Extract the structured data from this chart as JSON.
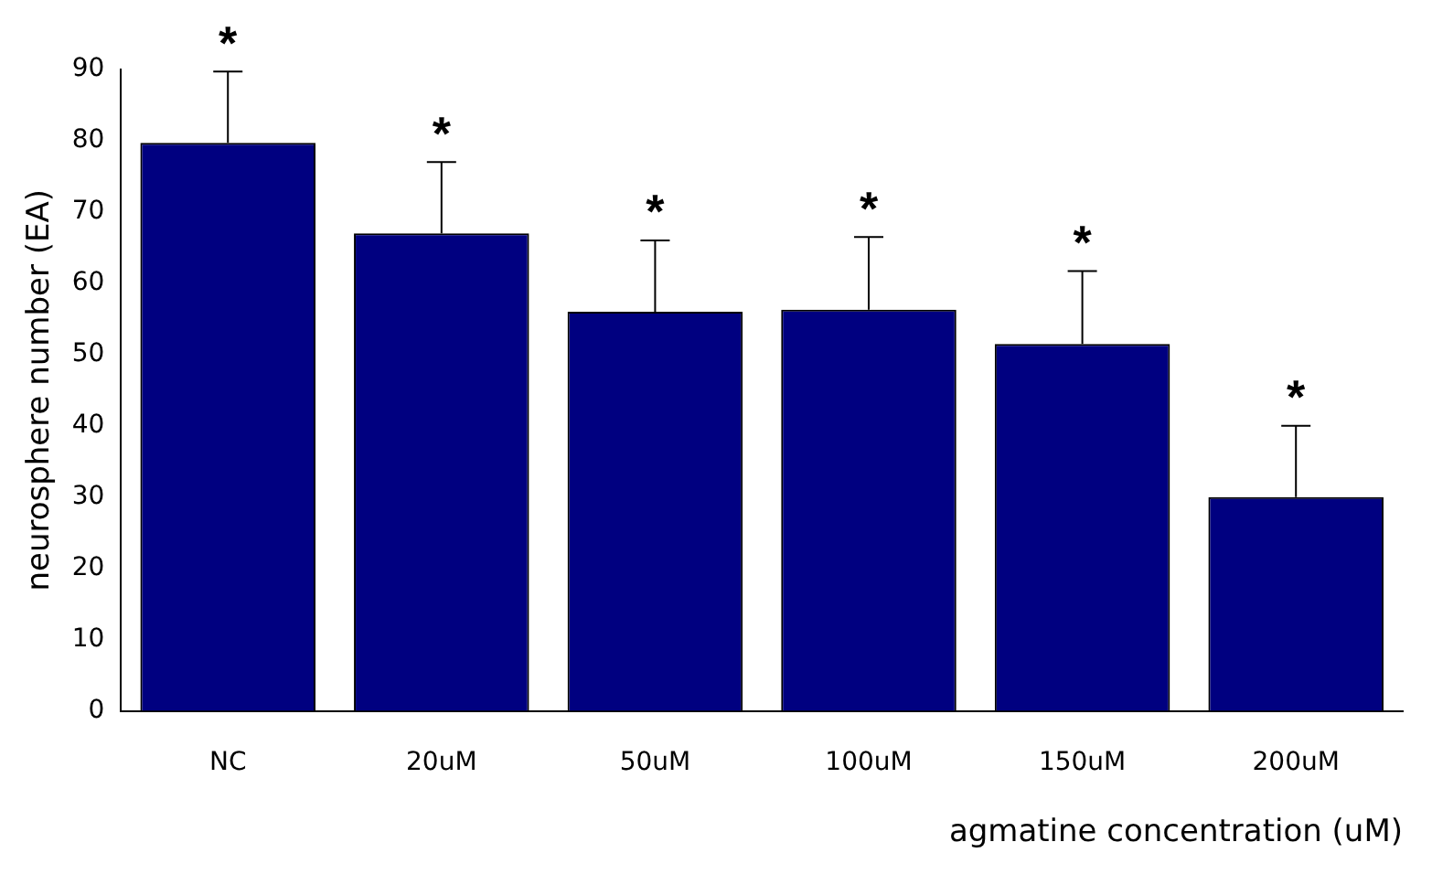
{
  "chart_data": {
    "type": "bar",
    "xlabel": "agmatine concentration (uM)",
    "ylabel": "neurosphere number (EA)",
    "categories": [
      "NC",
      "20uM",
      "50uM",
      "100uM",
      "150uM",
      "200uM"
    ],
    "values": [
      79.7,
      67,
      56,
      56.3,
      51.5,
      30
    ],
    "errors": [
      [
        79.7,
        89.7
      ],
      [
        67,
        77
      ],
      [
        56,
        66
      ],
      [
        56.3,
        66.5
      ],
      [
        51.5,
        61.7
      ],
      [
        30,
        40
      ]
    ],
    "color": "#000080",
    "ylim": [
      0,
      90
    ],
    "yticks": [
      0,
      10,
      20,
      30,
      40,
      50,
      60,
      70,
      80,
      90
    ],
    "grid": false,
    "legend": false,
    "annotations": [
      "*",
      "*",
      "*",
      "*",
      "*",
      "*"
    ]
  }
}
